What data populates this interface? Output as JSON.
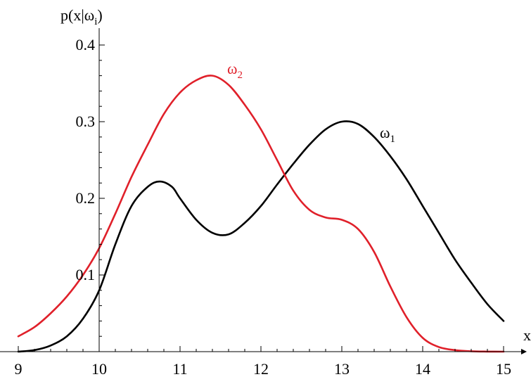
{
  "chart_data": {
    "type": "line",
    "title": "",
    "xlabel": "x",
    "ylabel": "p(x|ω",
    "ylabel_sub": "i",
    "ylabel_close": ")",
    "xlim": [
      9,
      15
    ],
    "ylim": [
      0,
      0.4
    ],
    "x_axis_crosses_at": 10,
    "x_ticks": [
      9,
      10,
      11,
      12,
      13,
      14,
      15
    ],
    "x_tick_labels": [
      "9",
      "10",
      "11",
      "12",
      "13",
      "14",
      "15"
    ],
    "y_ticks": [
      0.1,
      0.2,
      0.3,
      0.4
    ],
    "y_tick_labels": [
      "0.1",
      "0.2",
      "0.3",
      "0.4"
    ],
    "grid": false,
    "series": [
      {
        "name": "ω1",
        "label_main": "ω",
        "label_sub": "1",
        "color": "#000000",
        "x": [
          9.0,
          9.2,
          9.4,
          9.6,
          9.8,
          10.0,
          10.2,
          10.4,
          10.6,
          10.75,
          10.9,
          11.0,
          11.2,
          11.4,
          11.6,
          11.8,
          12.0,
          12.2,
          12.4,
          12.6,
          12.8,
          13.0,
          13.2,
          13.4,
          13.6,
          13.8,
          14.0,
          14.2,
          14.4,
          14.6,
          14.8,
          15.0
        ],
        "values": [
          0.0,
          0.002,
          0.008,
          0.02,
          0.043,
          0.08,
          0.14,
          0.19,
          0.215,
          0.222,
          0.215,
          0.2,
          0.172,
          0.155,
          0.153,
          0.168,
          0.19,
          0.218,
          0.245,
          0.27,
          0.29,
          0.3,
          0.297,
          0.28,
          0.255,
          0.225,
          0.19,
          0.155,
          0.12,
          0.09,
          0.062,
          0.04
        ]
      },
      {
        "name": "ω2",
        "label_main": "ω",
        "label_sub": "2",
        "color": "#e0202a",
        "x": [
          9.0,
          9.2,
          9.4,
          9.6,
          9.8,
          10.0,
          10.2,
          10.4,
          10.6,
          10.8,
          11.0,
          11.2,
          11.4,
          11.6,
          11.8,
          12.0,
          12.2,
          12.4,
          12.6,
          12.8,
          13.0,
          13.2,
          13.4,
          13.6,
          13.8,
          14.0,
          14.2,
          14.4,
          14.6,
          14.8,
          15.0
        ],
        "values": [
          0.02,
          0.032,
          0.05,
          0.072,
          0.1,
          0.135,
          0.18,
          0.228,
          0.27,
          0.31,
          0.338,
          0.354,
          0.36,
          0.348,
          0.322,
          0.29,
          0.25,
          0.21,
          0.185,
          0.175,
          0.172,
          0.16,
          0.13,
          0.085,
          0.045,
          0.018,
          0.006,
          0.002,
          0.0005,
          0.0001,
          0.0
        ]
      }
    ]
  }
}
